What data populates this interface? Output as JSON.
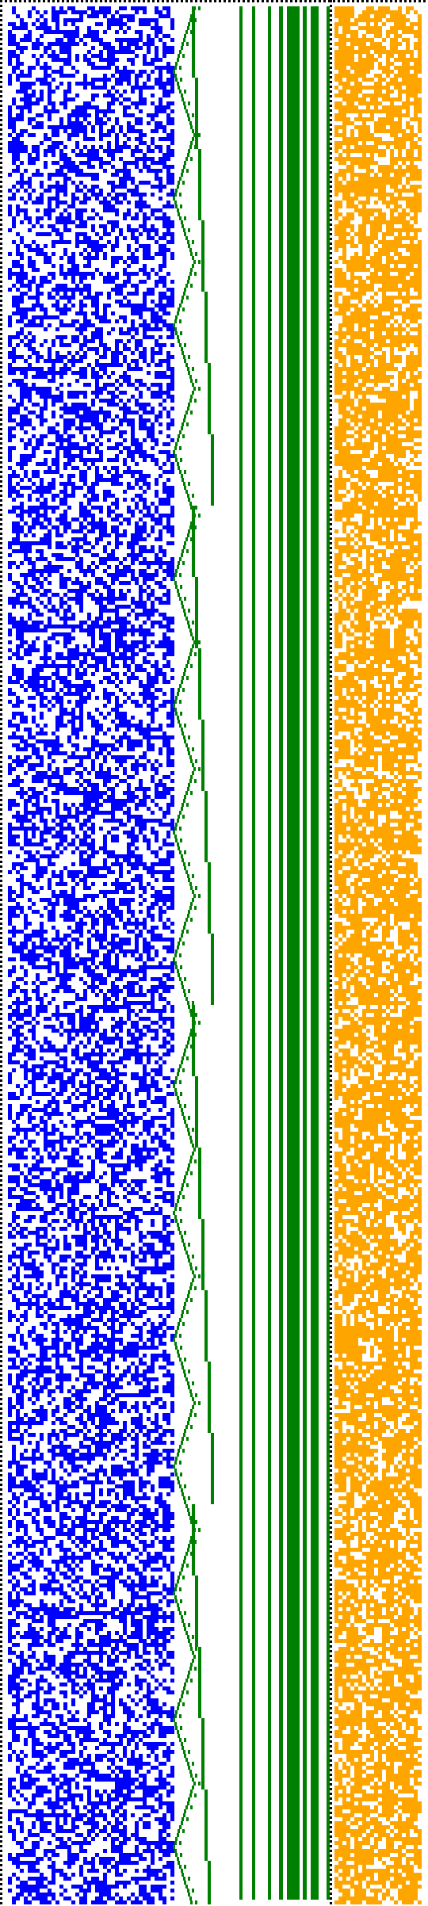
{
  "colors": {
    "background": "#ffffff",
    "border": "#000000",
    "region_a": "#0000ff",
    "region_b": "#008000",
    "region_c": "#ffa500"
  },
  "pattern": {
    "description_free": true,
    "regions": [
      {
        "id": "blue-noise-region",
        "color_key": "region_a",
        "density": 0.5
      },
      {
        "id": "green-staircase-region",
        "color_key": "region_b"
      },
      {
        "id": "green-vertical-lines-region",
        "color_key": "region_b"
      },
      {
        "id": "orange-noise-region",
        "color_key": "region_c",
        "density": 0.72
      }
    ]
  }
}
